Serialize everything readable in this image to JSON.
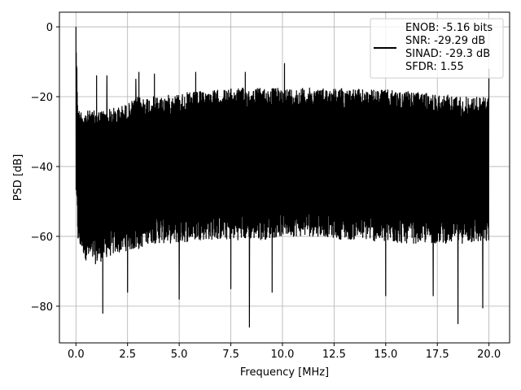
{
  "chart_data": {
    "type": "line",
    "title": "",
    "xlabel": "Frequency [MHz]",
    "ylabel": "PSD [dB]",
    "xlim": [
      -0.8,
      21.0
    ],
    "ylim": [
      -90.5,
      4.2
    ],
    "xticks": [
      0.0,
      2.5,
      5.0,
      7.5,
      10.0,
      12.5,
      15.0,
      17.5,
      20.0
    ],
    "xtick_labels": [
      "0.0",
      "2.5",
      "5.0",
      "7.5",
      "10.0",
      "12.5",
      "15.0",
      "17.5",
      "20.0"
    ],
    "yticks": [
      0,
      -20,
      -40,
      -60,
      -80
    ],
    "ytick_labels": [
      "0",
      "−20",
      "−40",
      "−60",
      "−80"
    ],
    "grid": true,
    "legend_position": "top-right",
    "legend_lines": [
      "ENOB: -5.16 bits",
      "SNR: -29.29 dB",
      "SINAD: -29.3 dB",
      "SFDR: 1.55"
    ],
    "line_color": "#000000",
    "series": [
      {
        "envelope": {
          "x": [
            0.0,
            0.1,
            0.5,
            1.0,
            1.5,
            2.0,
            2.5,
            3.0,
            3.5,
            4.0,
            5.0,
            6.0,
            7.0,
            8.0,
            9.0,
            10.0,
            11.0,
            12.0,
            13.0,
            14.0,
            15.0,
            16.0,
            17.0,
            18.0,
            19.0,
            20.0
          ],
          "upper": [
            0.0,
            -23.5,
            -24,
            -24,
            -23.5,
            -23,
            -22,
            -20,
            -20,
            -20,
            -19,
            -18.5,
            -18,
            -17.5,
            -17.5,
            -17.5,
            -17.5,
            -17.5,
            -17.5,
            -18,
            -18,
            -18.5,
            -19,
            -19.5,
            -20,
            -20
          ],
          "lower": [
            -48,
            -62,
            -67,
            -68,
            -66,
            -65,
            -64,
            -64,
            -62,
            -62,
            -62,
            -61,
            -61,
            -61,
            -61,
            -60,
            -60,
            -60,
            -61,
            -61,
            -62,
            -62,
            -62,
            -62,
            -62,
            -62
          ]
        },
        "peaks": {
          "x": [
            0.0,
            1.0,
            1.5,
            2.9,
            3.05,
            3.8,
            5.8,
            8.2,
            10.1,
            20.0
          ],
          "y": [
            0.0,
            -14,
            -14,
            -15,
            -13,
            -13.5,
            -13,
            -13,
            -10.5,
            -12
          ]
        },
        "dips": {
          "x": [
            0.2,
            1.0,
            1.3,
            2.5,
            5.0,
            7.5,
            8.4,
            9.5,
            15.0,
            17.3,
            18.5,
            19.7
          ],
          "y": [
            -62,
            -76,
            -82,
            -76,
            -78,
            -75,
            -86,
            -76,
            -77,
            -77,
            -85,
            -80.5
          ]
        }
      }
    ]
  }
}
